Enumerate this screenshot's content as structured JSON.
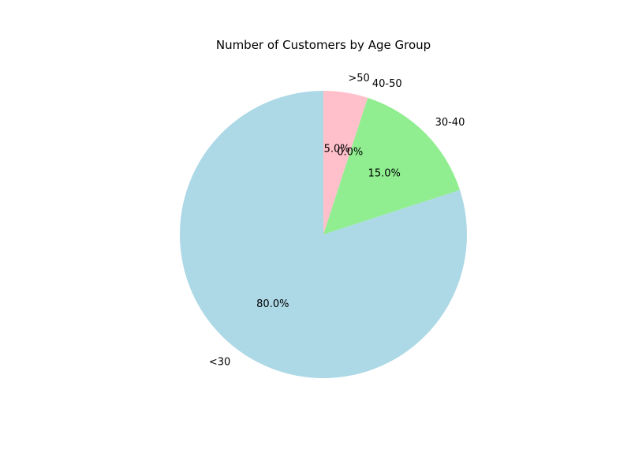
{
  "chart_data": {
    "type": "pie",
    "title": "Number of Customers by Age Group",
    "categories": [
      ">50",
      "40-50",
      "30-40",
      "<30"
    ],
    "values": [
      5.0,
      0.0,
      15.0,
      80.0
    ],
    "labels": [
      "5.0%",
      "0.0%",
      "15.0%",
      "80.0%"
    ],
    "colors": [
      "#ffc0cb",
      "#ffa500",
      "#90ee90",
      "#add8e6"
    ],
    "start_angle_deg": 90,
    "direction": "clockwise",
    "legend": "none"
  }
}
